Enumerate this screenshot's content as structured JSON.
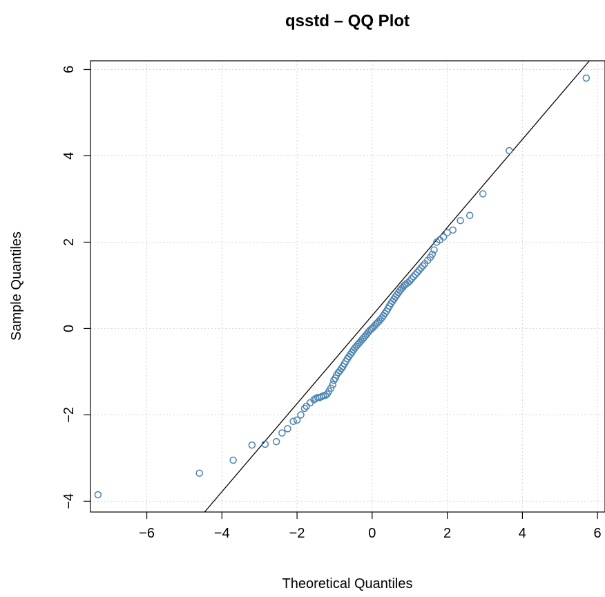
{
  "chart_data": {
    "type": "scatter",
    "title": "qsstd – QQ Plot",
    "xlabel": "Theoretical Quantiles",
    "ylabel": "Sample Quantiles",
    "xlim": [
      -7.5,
      6.2
    ],
    "ylim": [
      -4.25,
      6.2
    ],
    "xticks": [
      -6,
      -4,
      -2,
      0,
      2,
      4,
      6
    ],
    "yticks": [
      -4,
      -2,
      0,
      2,
      4,
      6
    ],
    "xtick_labels": [
      "−6",
      "−4",
      "−2",
      "0",
      "2",
      "4",
      "6"
    ],
    "ytick_labels": [
      "−4",
      "−2",
      "0",
      "2",
      "4",
      "6"
    ],
    "grid": true,
    "point_color": "#4a82b0",
    "reference_line": {
      "slope": 1.02,
      "intercept": 0.3
    },
    "points": [
      [
        -7.3,
        -3.85
      ],
      [
        -4.6,
        -3.35
      ],
      [
        -3.7,
        -3.05
      ],
      [
        -3.2,
        -2.7
      ],
      [
        -2.85,
        -2.68
      ],
      [
        -2.55,
        -2.62
      ],
      [
        -2.4,
        -2.42
      ],
      [
        -2.25,
        -2.32
      ],
      [
        -2.1,
        -2.15
      ],
      [
        -2.0,
        -2.12
      ],
      [
        -1.9,
        -2.0
      ],
      [
        -1.8,
        -1.85
      ],
      [
        -1.75,
        -1.8
      ],
      [
        -1.65,
        -1.72
      ],
      [
        -1.55,
        -1.65
      ],
      [
        -1.5,
        -1.62
      ],
      [
        -1.45,
        -1.6
      ],
      [
        -1.4,
        -1.6
      ],
      [
        -1.35,
        -1.58
      ],
      [
        -1.3,
        -1.56
      ],
      [
        -1.25,
        -1.55
      ],
      [
        -1.2,
        -1.52
      ],
      [
        -1.15,
        -1.45
      ],
      [
        -1.1,
        -1.38
      ],
      [
        -1.05,
        -1.3
      ],
      [
        -1.02,
        -1.2
      ],
      [
        -0.98,
        -1.15
      ],
      [
        -0.95,
        -1.08
      ],
      [
        -0.9,
        -1.02
      ],
      [
        -0.86,
        -0.98
      ],
      [
        -0.82,
        -0.93
      ],
      [
        -0.78,
        -0.88
      ],
      [
        -0.74,
        -0.82
      ],
      [
        -0.7,
        -0.76
      ],
      [
        -0.66,
        -0.7
      ],
      [
        -0.62,
        -0.65
      ],
      [
        -0.58,
        -0.6
      ],
      [
        -0.54,
        -0.55
      ],
      [
        -0.5,
        -0.5
      ],
      [
        -0.46,
        -0.45
      ],
      [
        -0.42,
        -0.41
      ],
      [
        -0.38,
        -0.37
      ],
      [
        -0.34,
        -0.33
      ],
      [
        -0.3,
        -0.29
      ],
      [
        -0.26,
        -0.25
      ],
      [
        -0.22,
        -0.21
      ],
      [
        -0.18,
        -0.17
      ],
      [
        -0.14,
        -0.13
      ],
      [
        -0.1,
        -0.08
      ],
      [
        -0.06,
        -0.04
      ],
      [
        -0.02,
        -0.01
      ],
      [
        0.02,
        0.02
      ],
      [
        0.06,
        0.06
      ],
      [
        0.1,
        0.1
      ],
      [
        0.14,
        0.13
      ],
      [
        0.18,
        0.17
      ],
      [
        0.22,
        0.21
      ],
      [
        0.26,
        0.25
      ],
      [
        0.3,
        0.3
      ],
      [
        0.34,
        0.35
      ],
      [
        0.38,
        0.4
      ],
      [
        0.42,
        0.46
      ],
      [
        0.46,
        0.52
      ],
      [
        0.5,
        0.58
      ],
      [
        0.54,
        0.63
      ],
      [
        0.58,
        0.68
      ],
      [
        0.62,
        0.73
      ],
      [
        0.66,
        0.78
      ],
      [
        0.7,
        0.83
      ],
      [
        0.74,
        0.88
      ],
      [
        0.78,
        0.92
      ],
      [
        0.82,
        0.96
      ],
      [
        0.86,
        1.0
      ],
      [
        0.9,
        1.03
      ],
      [
        0.95,
        1.06
      ],
      [
        1.0,
        1.1
      ],
      [
        1.05,
        1.15
      ],
      [
        1.1,
        1.2
      ],
      [
        1.15,
        1.25
      ],
      [
        1.2,
        1.3
      ],
      [
        1.25,
        1.35
      ],
      [
        1.3,
        1.4
      ],
      [
        1.35,
        1.45
      ],
      [
        1.4,
        1.5
      ],
      [
        1.48,
        1.58
      ],
      [
        1.55,
        1.65
      ],
      [
        1.6,
        1.72
      ],
      [
        1.65,
        1.82
      ],
      [
        1.72,
        2.0
      ],
      [
        1.8,
        2.05
      ],
      [
        1.9,
        2.12
      ],
      [
        2.0,
        2.22
      ],
      [
        2.15,
        2.28
      ],
      [
        2.35,
        2.5
      ],
      [
        2.6,
        2.62
      ],
      [
        2.95,
        3.12
      ],
      [
        3.65,
        4.12
      ],
      [
        5.7,
        5.8
      ]
    ]
  }
}
